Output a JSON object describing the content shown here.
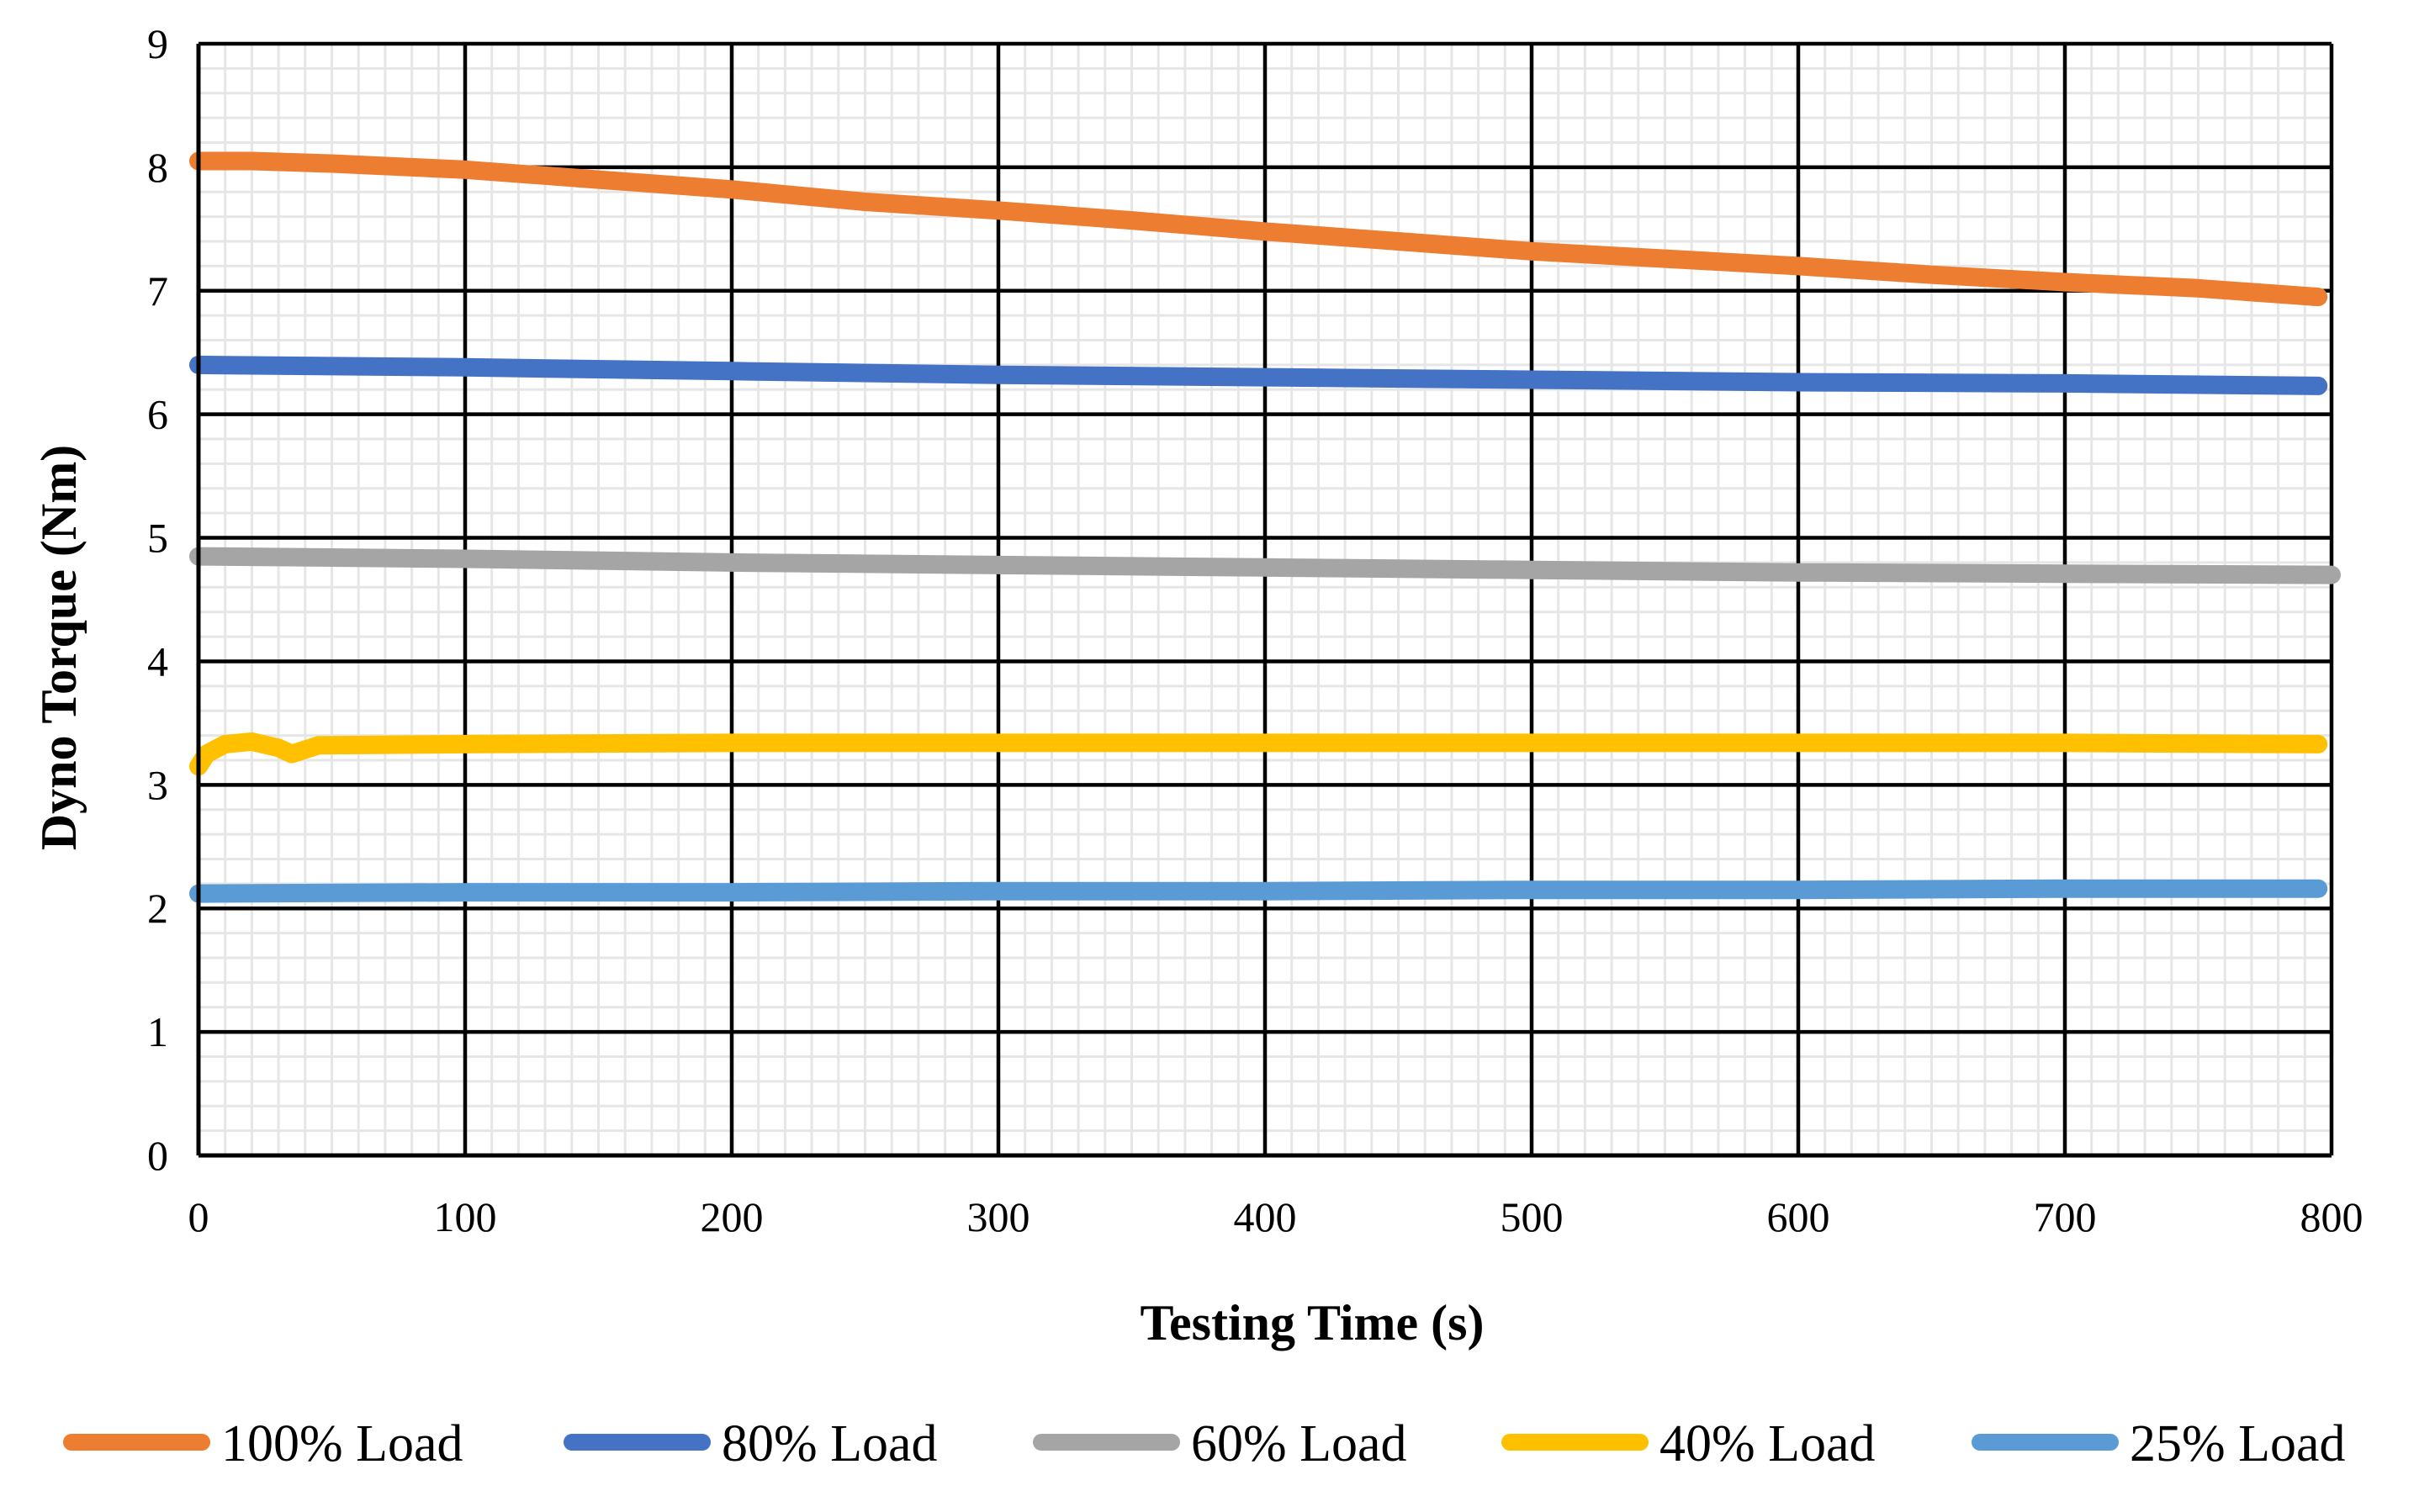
{
  "chart_data": {
    "type": "line",
    "title": "",
    "xlabel": "Testing Time (s)",
    "ylabel": "Dyno Torque  (Nm)",
    "xlim": [
      0,
      800
    ],
    "ylim": [
      0,
      9
    ],
    "x_ticks": [
      0,
      100,
      200,
      300,
      400,
      500,
      600,
      700,
      800
    ],
    "y_ticks": [
      0,
      1,
      2,
      3,
      4,
      5,
      6,
      7,
      8,
      9
    ],
    "x_tick_labels": [
      "0",
      "100",
      "200",
      "300",
      "400",
      "500",
      "600",
      "700",
      "800"
    ],
    "y_tick_labels": [
      "0",
      "1",
      "2",
      "3",
      "4",
      "5",
      "6",
      "7",
      "8",
      "9"
    ],
    "grid": {
      "major": true,
      "minor": true,
      "minor_x_step": 10,
      "minor_y_step": 0.2
    },
    "legend_position": "bottom",
    "series": [
      {
        "name": "100% Load",
        "color": "#ED7D31",
        "x": [
          0,
          20,
          50,
          100,
          150,
          200,
          250,
          300,
          350,
          400,
          450,
          500,
          550,
          600,
          650,
          700,
          750,
          795
        ],
        "y": [
          8.05,
          8.05,
          8.03,
          7.98,
          7.9,
          7.82,
          7.72,
          7.65,
          7.57,
          7.48,
          7.4,
          7.32,
          7.26,
          7.2,
          7.13,
          7.07,
          7.02,
          6.95
        ]
      },
      {
        "name": "80% Load",
        "color": "#4472C4",
        "x": [
          0,
          100,
          200,
          300,
          400,
          500,
          600,
          700,
          795
        ],
        "y": [
          6.4,
          6.38,
          6.35,
          6.32,
          6.3,
          6.28,
          6.26,
          6.25,
          6.23
        ]
      },
      {
        "name": "60% Load",
        "color": "#A5A5A5",
        "x": [
          0,
          100,
          200,
          300,
          400,
          500,
          600,
          700,
          800
        ],
        "y": [
          4.85,
          4.83,
          4.8,
          4.78,
          4.76,
          4.74,
          4.72,
          4.71,
          4.7
        ]
      },
      {
        "name": "40% Load",
        "color": "#FFC000",
        "x": [
          0,
          3,
          10,
          20,
          30,
          35,
          45,
          100,
          200,
          300,
          400,
          500,
          600,
          700,
          795
        ],
        "y": [
          3.15,
          3.25,
          3.33,
          3.35,
          3.3,
          3.25,
          3.32,
          3.33,
          3.34,
          3.34,
          3.34,
          3.34,
          3.34,
          3.34,
          3.33
        ]
      },
      {
        "name": "25% Load",
        "color": "#5B9BD5",
        "x": [
          0,
          100,
          200,
          300,
          400,
          500,
          600,
          700,
          795
        ],
        "y": [
          2.12,
          2.13,
          2.13,
          2.14,
          2.14,
          2.15,
          2.15,
          2.16,
          2.16
        ]
      }
    ]
  }
}
